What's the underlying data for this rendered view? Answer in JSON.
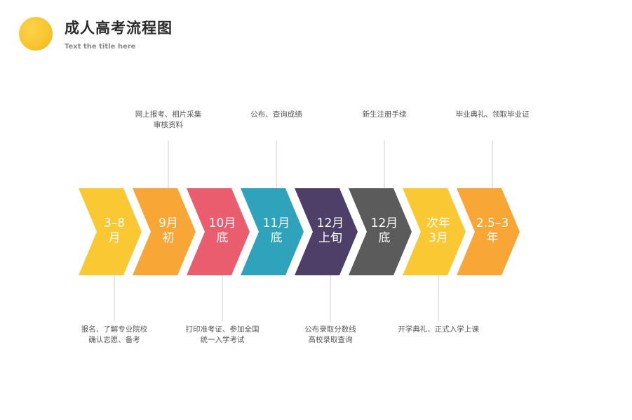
{
  "header": {
    "title": "成人高考流程图",
    "subtitle": "Text the title here"
  },
  "colors": {
    "yellow": "#f9c832",
    "orange": "#f8a737",
    "pink": "#e95d6f",
    "teal": "#2fa3bc",
    "purple": "#4d3f68",
    "gray": "#5b5b5b",
    "connector": "#cfcfcf"
  },
  "steps": [
    {
      "line1": "3–8",
      "line2": "月",
      "color": "#f9c832"
    },
    {
      "line1": "9月",
      "line2": "初",
      "color": "#f8a737"
    },
    {
      "line1": "10月",
      "line2": "底",
      "color": "#e95d6f"
    },
    {
      "line1": "11月",
      "line2": "底",
      "color": "#2fa3bc"
    },
    {
      "line1": "12月",
      "line2": "上旬",
      "color": "#4d3f68"
    },
    {
      "line1": "12月",
      "line2": "底",
      "color": "#5b5b5b"
    },
    {
      "line1": "次年",
      "line2": "3月",
      "color": "#f9c832"
    },
    {
      "line1": "2.5–3",
      "line2": "年",
      "color": "#f8a737"
    }
  ],
  "notes_top": [
    {
      "step": 1,
      "line1": "网上报考、相片采集",
      "line2": "审核资料"
    },
    {
      "step": 3,
      "line1": "公布、查询成绩",
      "line2": ""
    },
    {
      "step": 5,
      "line1": "新生注册手续",
      "line2": ""
    },
    {
      "step": 7,
      "line1": "毕业典礼、领取毕业证",
      "line2": ""
    }
  ],
  "notes_bottom": [
    {
      "step": 0,
      "line1": "报名、了解专业院校",
      "line2": "确认志愿、备考"
    },
    {
      "step": 2,
      "line1": "打印准考证、参加全国",
      "line2": "统一入学考试"
    },
    {
      "step": 4,
      "line1": "公布录取分数线",
      "line2": "高校录取查询"
    },
    {
      "step": 6,
      "line1": "开学典礼、正式入学上课",
      "line2": ""
    }
  ]
}
